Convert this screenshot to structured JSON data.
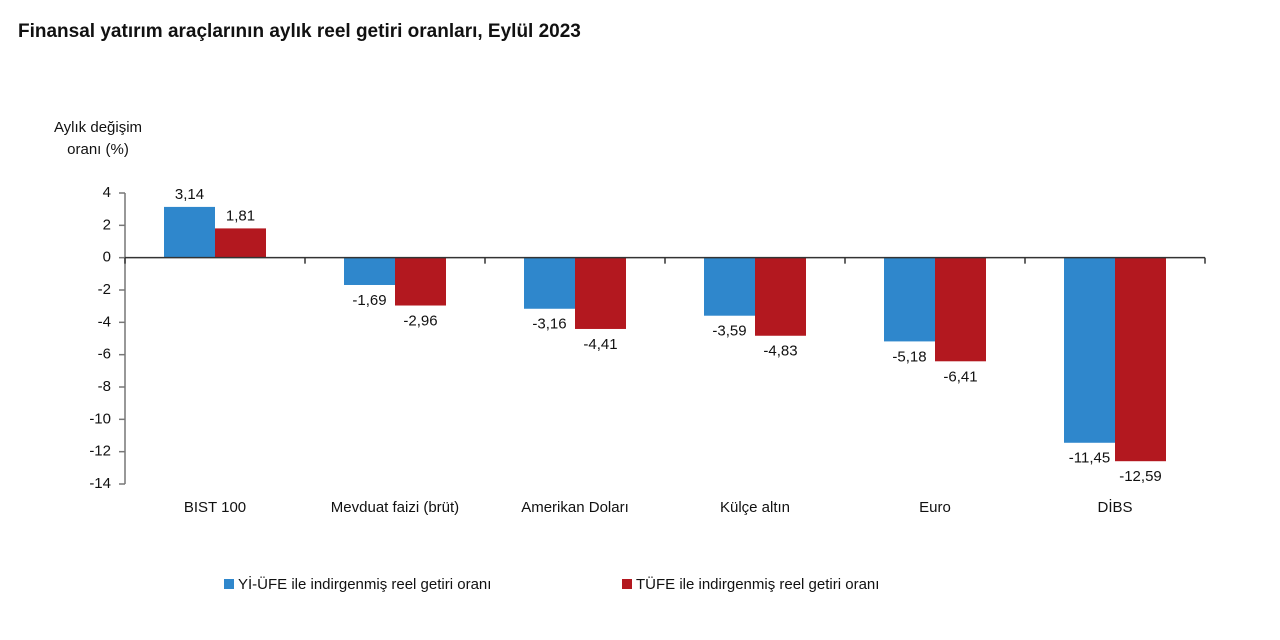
{
  "chart_data": {
    "type": "bar",
    "title": "Finansal yatırım araçlarının aylık reel getiri oranları, Eylül 2023",
    "y_label": [
      "Aylık değişim",
      "oranı (%)"
    ],
    "categories": [
      "BIST 100",
      "Mevduat faizi (brüt)",
      "Amerikan Doları",
      "Külçe altın",
      "Euro",
      "DİBS"
    ],
    "series": [
      {
        "name": "Yİ-ÜFE ile indirgenmiş reel getiri oranı",
        "color": "#2f87cc",
        "values": [
          3.14,
          -1.69,
          -3.16,
          -3.59,
          -5.18,
          -11.45
        ],
        "value_labels": [
          "3,14",
          "-1,69",
          "-3,16",
          "-3,59",
          "-5,18",
          "-11,45"
        ]
      },
      {
        "name": "TÜFE ile indirgenmiş reel getiri oranı",
        "color": "#b3181f",
        "values": [
          1.81,
          -2.96,
          -4.41,
          -4.83,
          -6.41,
          -12.59
        ],
        "value_labels": [
          "1,81",
          "-2,96",
          "-4,41",
          "-4,83",
          "-6,41",
          "-12,59"
        ]
      }
    ],
    "ylim": [
      -14,
      4
    ],
    "yticks": [
      4,
      2,
      0,
      -2,
      -4,
      -6,
      -8,
      -10,
      -12,
      -14
    ],
    "grid": false
  }
}
